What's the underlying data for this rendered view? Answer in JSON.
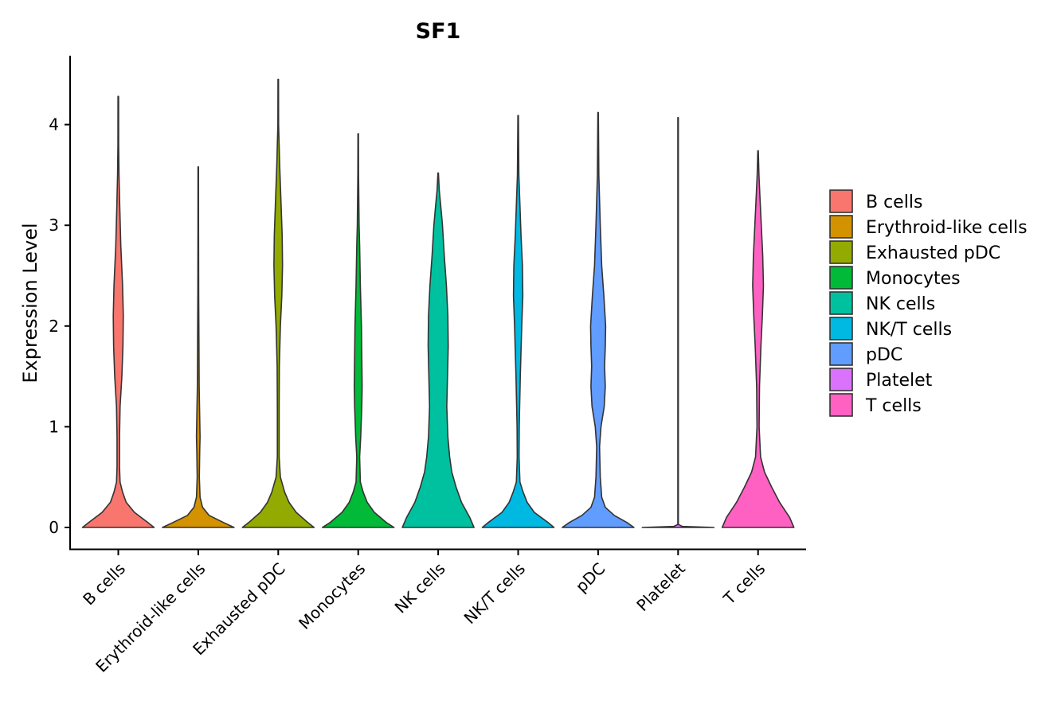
{
  "chart_data": {
    "type": "violin",
    "title": "SF1",
    "xlabel": "",
    "ylabel": "Expression Level",
    "ylim": [
      -0.22,
      4.7
    ],
    "yticks": [
      0,
      1,
      2,
      3,
      4
    ],
    "legend_position": "right",
    "categories": [
      "B cells",
      "Erythroid-like cells",
      "Exhausted pDC",
      "Monocytes",
      "NK cells",
      "NK/T cells",
      "pDC",
      "Platelet",
      "T cells"
    ],
    "colors": [
      "#F8766D",
      "#D39200",
      "#93AA00",
      "#00BA38",
      "#00C19F",
      "#00B9E3",
      "#619CFF",
      "#DB72FB",
      "#FF61C3"
    ],
    "violins": [
      {
        "name": "B cells",
        "max": 4.28,
        "profile": [
          [
            0,
            1.0
          ],
          [
            0.05,
            0.82
          ],
          [
            0.15,
            0.45
          ],
          [
            0.25,
            0.22
          ],
          [
            0.35,
            0.12
          ],
          [
            0.45,
            0.05
          ],
          [
            0.6,
            0.035
          ],
          [
            0.9,
            0.035
          ],
          [
            1.2,
            0.05
          ],
          [
            1.5,
            0.1
          ],
          [
            1.8,
            0.13
          ],
          [
            2.1,
            0.14
          ],
          [
            2.4,
            0.12
          ],
          [
            2.8,
            0.07
          ],
          [
            3.2,
            0.04
          ],
          [
            3.5,
            0.02
          ],
          [
            3.8,
            0.01
          ],
          [
            4.28,
            0.008
          ]
        ]
      },
      {
        "name": "Erythroid-like cells",
        "max": 3.58,
        "profile": [
          [
            0,
            1.0
          ],
          [
            0.05,
            0.7
          ],
          [
            0.12,
            0.3
          ],
          [
            0.2,
            0.12
          ],
          [
            0.3,
            0.05
          ],
          [
            0.5,
            0.03
          ],
          [
            0.75,
            0.04
          ],
          [
            0.9,
            0.05
          ],
          [
            1.1,
            0.04
          ],
          [
            1.4,
            0.025
          ],
          [
            1.8,
            0.02
          ],
          [
            2.3,
            0.012
          ],
          [
            3.0,
            0.008
          ],
          [
            3.58,
            0.007
          ]
        ]
      },
      {
        "name": "Exhausted pDC",
        "max": 4.45,
        "profile": [
          [
            0,
            1.0
          ],
          [
            0.05,
            0.82
          ],
          [
            0.15,
            0.5
          ],
          [
            0.25,
            0.3
          ],
          [
            0.35,
            0.18
          ],
          [
            0.5,
            0.06
          ],
          [
            0.7,
            0.025
          ],
          [
            1.2,
            0.025
          ],
          [
            1.6,
            0.03
          ],
          [
            2.0,
            0.06
          ],
          [
            2.3,
            0.1
          ],
          [
            2.6,
            0.12
          ],
          [
            2.9,
            0.11
          ],
          [
            3.2,
            0.08
          ],
          [
            3.6,
            0.04
          ],
          [
            4.0,
            0.01
          ],
          [
            4.45,
            0.007
          ]
        ]
      },
      {
        "name": "Monocytes",
        "max": 3.91,
        "profile": [
          [
            0,
            1.0
          ],
          [
            0.05,
            0.78
          ],
          [
            0.15,
            0.45
          ],
          [
            0.25,
            0.25
          ],
          [
            0.35,
            0.14
          ],
          [
            0.45,
            0.06
          ],
          [
            0.7,
            0.04
          ],
          [
            0.9,
            0.07
          ],
          [
            1.2,
            0.1
          ],
          [
            1.4,
            0.11
          ],
          [
            1.7,
            0.1
          ],
          [
            2.0,
            0.09
          ],
          [
            2.4,
            0.06
          ],
          [
            2.8,
            0.04
          ],
          [
            3.0,
            0.025
          ],
          [
            3.5,
            0.01
          ],
          [
            3.91,
            0.007
          ]
        ]
      },
      {
        "name": "NK cells",
        "max": 3.52,
        "profile": [
          [
            0,
            1.0
          ],
          [
            0.1,
            0.88
          ],
          [
            0.25,
            0.65
          ],
          [
            0.4,
            0.5
          ],
          [
            0.55,
            0.38
          ],
          [
            0.7,
            0.32
          ],
          [
            0.9,
            0.27
          ],
          [
            1.2,
            0.24
          ],
          [
            1.5,
            0.26
          ],
          [
            1.8,
            0.28
          ],
          [
            2.1,
            0.27
          ],
          [
            2.4,
            0.23
          ],
          [
            2.7,
            0.17
          ],
          [
            3.0,
            0.12
          ],
          [
            3.2,
            0.07
          ],
          [
            3.35,
            0.03
          ],
          [
            3.52,
            0.007
          ]
        ]
      },
      {
        "name": "NK/T cells",
        "max": 4.09,
        "profile": [
          [
            0,
            1.0
          ],
          [
            0.05,
            0.83
          ],
          [
            0.15,
            0.45
          ],
          [
            0.25,
            0.25
          ],
          [
            0.35,
            0.14
          ],
          [
            0.45,
            0.05
          ],
          [
            0.7,
            0.025
          ],
          [
            1.0,
            0.03
          ],
          [
            1.5,
            0.06
          ],
          [
            2.0,
            0.1
          ],
          [
            2.3,
            0.13
          ],
          [
            2.6,
            0.12
          ],
          [
            2.9,
            0.08
          ],
          [
            3.2,
            0.05
          ],
          [
            3.5,
            0.02
          ],
          [
            4.09,
            0.007
          ]
        ]
      },
      {
        "name": "pDC",
        "max": 4.12,
        "profile": [
          [
            0,
            1.0
          ],
          [
            0.05,
            0.8
          ],
          [
            0.12,
            0.45
          ],
          [
            0.2,
            0.2
          ],
          [
            0.3,
            0.1
          ],
          [
            0.5,
            0.06
          ],
          [
            0.8,
            0.04
          ],
          [
            1.0,
            0.08
          ],
          [
            1.2,
            0.17
          ],
          [
            1.4,
            0.2
          ],
          [
            1.6,
            0.18
          ],
          [
            1.8,
            0.2
          ],
          [
            2.0,
            0.21
          ],
          [
            2.3,
            0.16
          ],
          [
            2.6,
            0.1
          ],
          [
            3.0,
            0.06
          ],
          [
            3.5,
            0.02
          ],
          [
            4.12,
            0.007
          ]
        ]
      },
      {
        "name": "Platelet",
        "max": 4.07,
        "profile": [
          [
            0,
            1.0
          ],
          [
            0.01,
            0.12
          ],
          [
            0.03,
            0.007
          ],
          [
            4.07,
            0.007
          ]
        ]
      },
      {
        "name": "T cells",
        "max": 3.74,
        "profile": [
          [
            0,
            1.0
          ],
          [
            0.1,
            0.88
          ],
          [
            0.25,
            0.6
          ],
          [
            0.4,
            0.38
          ],
          [
            0.55,
            0.18
          ],
          [
            0.7,
            0.07
          ],
          [
            1.0,
            0.03
          ],
          [
            1.4,
            0.04
          ],
          [
            1.8,
            0.08
          ],
          [
            2.1,
            0.12
          ],
          [
            2.4,
            0.15
          ],
          [
            2.7,
            0.13
          ],
          [
            3.0,
            0.09
          ],
          [
            3.3,
            0.05
          ],
          [
            3.5,
            0.025
          ],
          [
            3.74,
            0.007
          ]
        ]
      }
    ]
  }
}
